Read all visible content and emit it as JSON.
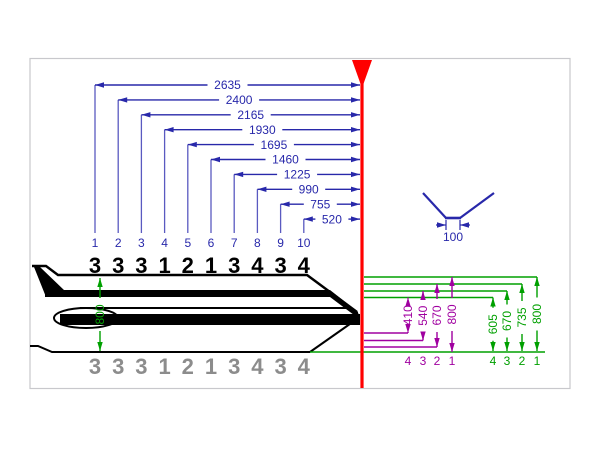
{
  "colors": {
    "dimension_blue": "#2828AA",
    "extension_blue": "#5A5AC0",
    "reference_red": "#FF0000",
    "measure_green": "#00A000",
    "measure_magenta": "#A000A0",
    "digits_black": "#000000",
    "digits_gray": "#8C8C8C",
    "frame_gray": "#C8C8CC",
    "shape_black": "#000000"
  },
  "top_dimensions": {
    "items": [
      {
        "index": "1",
        "length": "2635",
        "digit": "3"
      },
      {
        "index": "2",
        "length": "2400",
        "digit": "3"
      },
      {
        "index": "3",
        "length": "2165",
        "digit": "3"
      },
      {
        "index": "4",
        "length": "1930",
        "digit": "1"
      },
      {
        "index": "5",
        "length": "1695",
        "digit": "2"
      },
      {
        "index": "6",
        "length": "1460",
        "digit": "1"
      },
      {
        "index": "7",
        "length": "1225",
        "digit": "3"
      },
      {
        "index": "8",
        "length": "990",
        "digit": "4"
      },
      {
        "index": "9",
        "length": "755",
        "digit": "3"
      },
      {
        "index": "10",
        "length": "520",
        "digit": "4"
      }
    ]
  },
  "bottom_digits": {
    "items": [
      "3",
      "3",
      "3",
      "1",
      "2",
      "1",
      "3",
      "4",
      "3",
      "4"
    ]
  },
  "left_height": {
    "value": "800"
  },
  "fin": {
    "width": "100"
  },
  "magenta_heights": {
    "items": [
      {
        "label": "1",
        "value": "800"
      },
      {
        "label": "2",
        "value": "670"
      },
      {
        "label": "3",
        "value": "540"
      },
      {
        "label": "4",
        "value": "410"
      }
    ]
  },
  "green_heights": {
    "items": [
      {
        "label": "1",
        "value": "800"
      },
      {
        "label": "2",
        "value": "735"
      },
      {
        "label": "3",
        "value": "670"
      },
      {
        "label": "4",
        "value": "605"
      }
    ]
  }
}
